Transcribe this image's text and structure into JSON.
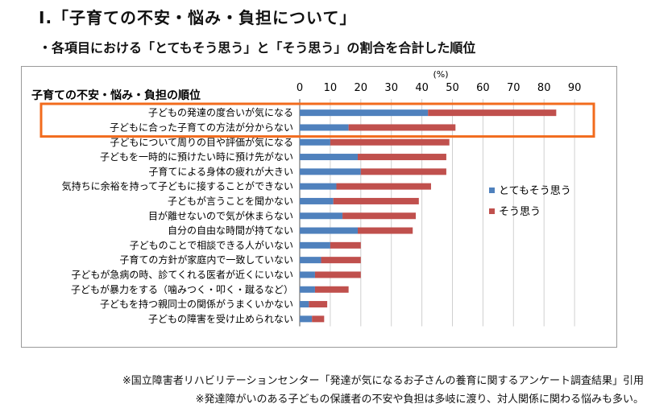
{
  "heading": "Ⅰ.「子育ての不安・悩み・負担について」",
  "subheading": "・各項目における「とてもそう思う」と「そう思う」の割合を合計した順位",
  "footnotes": [
    "※国立障害者リハビリテーションセンター「発達が気になるお子さんの養育に関するアンケート調査結果」引用",
    "※発達障がいのある子どもの保護者の不安や負担は多岐に渡り、対人関係に関わる悩みも多い。"
  ],
  "colors": {
    "strongly_agree": "#4f81bd",
    "agree": "#c0504d",
    "highlight": "#f26b1d"
  },
  "highlighted_rows": [
    0,
    1
  ],
  "chart_data": {
    "type": "bar",
    "orientation": "horizontal",
    "stacked": true,
    "title": "子育ての不安・悩み・負担の順位",
    "unit_label": "(%)",
    "xlim": [
      0,
      90
    ],
    "ticks": [
      0,
      10,
      20,
      30,
      40,
      50,
      60,
      70,
      80,
      90
    ],
    "grid": true,
    "legend_position": "right",
    "categories": [
      "子どもの発達の度合いが気になる",
      "子どもに合った子育ての方法が分からない",
      "子どもについて周りの目や評価が気になる",
      "子どもを一時的に預けたい時に預け先がない",
      "子育てによる身体の疲れが大きい",
      "気持ちに余裕を持って子どもに接することができない",
      "子どもが言うことを聞かない",
      "目が離せないので気が休まらない",
      "自分の自由な時間が持てない",
      "子どものことで相談できる人がいない",
      "子育ての方針が家庭内で一致していない",
      "子どもが急病の時、診てくれる医者が近くにいない",
      "子どもが暴力をする（噛みつく・叩く・蹴るなど）",
      "子どもを持つ親同士の関係がうまくいかない",
      "子どもの障害を受け止められない"
    ],
    "series": [
      {
        "name": "とてもそう思う",
        "values": [
          42,
          16,
          10,
          19,
          20,
          12,
          11,
          14,
          19,
          10,
          7,
          5,
          5,
          3,
          4
        ]
      },
      {
        "name": "そう思う",
        "values": [
          42,
          35,
          39,
          29,
          28,
          31,
          28,
          24,
          18,
          10,
          13,
          15,
          11,
          6,
          4
        ]
      }
    ]
  }
}
